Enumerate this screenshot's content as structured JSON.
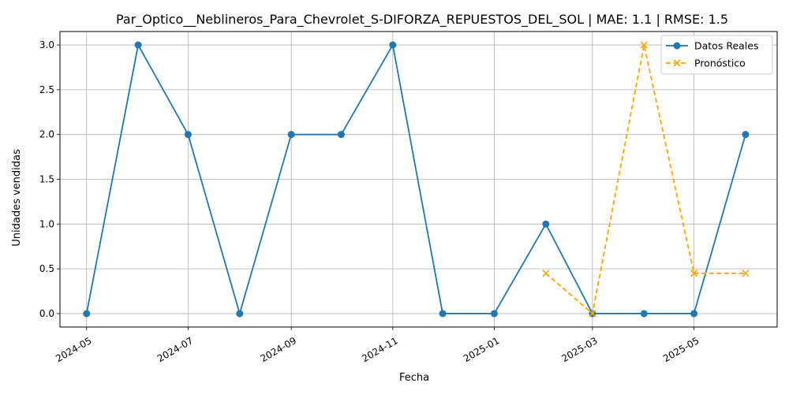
{
  "chart_data": {
    "type": "line",
    "title": "Par_Optico__Neblineros_Para_Chevrolet_S-DIFORZA_REPUESTOS_DEL_SOL | MAE: 1.1 | RMSE: 1.5",
    "xlabel": "Fecha",
    "ylabel": "Unidades vendidas",
    "ylim": [
      -0.15,
      3.15
    ],
    "xlim": [
      "2024-04-15",
      "2025-06-20"
    ],
    "grid": true,
    "legend_position": "top-right",
    "x_ticks": [
      "2024-05-01",
      "2024-07-01",
      "2024-09-01",
      "2024-11-01",
      "2025-01-01",
      "2025-03-01",
      "2025-05-01"
    ],
    "x_tick_labels": [
      "2024-05",
      "2024-07",
      "2024-09",
      "2024-11",
      "2025-01",
      "2025-03",
      "2025-05"
    ],
    "y_ticks": [
      0.0,
      0.5,
      1.0,
      1.5,
      2.0,
      2.5,
      3.0
    ],
    "y_tick_labels": [
      "0.0",
      "0.5",
      "1.0",
      "1.5",
      "2.0",
      "2.5",
      "3.0"
    ],
    "series": [
      {
        "name": "Datos Reales",
        "color": "#1f77b4",
        "style": "solid",
        "marker": "circle",
        "x": [
          "2024-05-01",
          "2024-06-01",
          "2024-07-01",
          "2024-08-01",
          "2024-09-01",
          "2024-10-01",
          "2024-11-01",
          "2024-12-01",
          "2025-01-01",
          "2025-02-01",
          "2025-03-01",
          "2025-04-01",
          "2025-05-01",
          "2025-06-01"
        ],
        "values": [
          0,
          3,
          2,
          0,
          2,
          2,
          3,
          0,
          0,
          1,
          0,
          0,
          0,
          2
        ]
      },
      {
        "name": "Pronóstico",
        "color": "#ffa500",
        "style": "dashed",
        "marker": "x",
        "x": [
          "2025-02-01",
          "2025-03-01",
          "2025-04-01",
          "2025-05-01",
          "2025-06-01"
        ],
        "values": [
          0.45,
          0,
          3,
          0.45,
          0.45
        ]
      }
    ]
  }
}
